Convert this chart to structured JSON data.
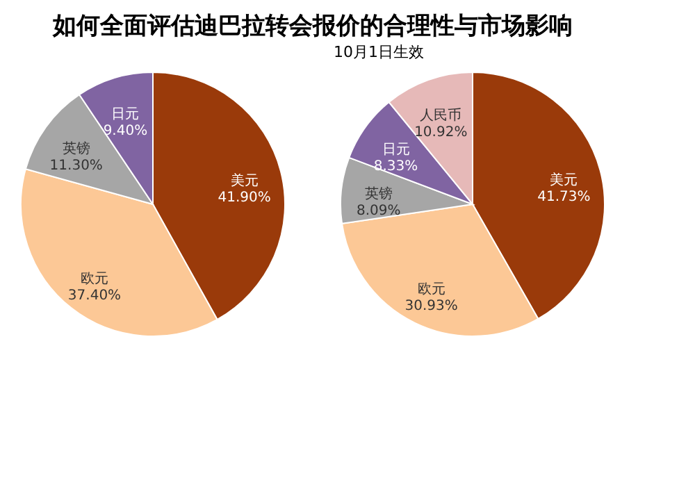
{
  "chart_data": [
    {
      "type": "pie",
      "title": "如何全面评估迪巴拉转会报价的合理性与市场影响",
      "categories": [
        "美元",
        "欧元",
        "英镑",
        "日元"
      ],
      "values": [
        41.9,
        37.4,
        11.3,
        9.4
      ],
      "value_labels": [
        "41.90%",
        "37.40%",
        "11.30%",
        "9.40%"
      ],
      "colors": [
        "#9a3a0a",
        "#fcc896",
        "#a6a6a6",
        "#8064a2"
      ],
      "legend": false
    },
    {
      "type": "pie",
      "annotations": [
        "10月1日生效"
      ],
      "categories": [
        "美元",
        "欧元",
        "英镑",
        "日元",
        "人民币"
      ],
      "values": [
        41.73,
        30.93,
        8.09,
        8.33,
        10.92
      ],
      "value_labels": [
        "41.73%",
        "30.93%",
        "8.09%",
        "8.33%",
        "10.92%"
      ],
      "colors": [
        "#9a3a0a",
        "#fcc896",
        "#a6a6a6",
        "#8064a2",
        "#e6b9b8"
      ],
      "legend": false
    }
  ]
}
